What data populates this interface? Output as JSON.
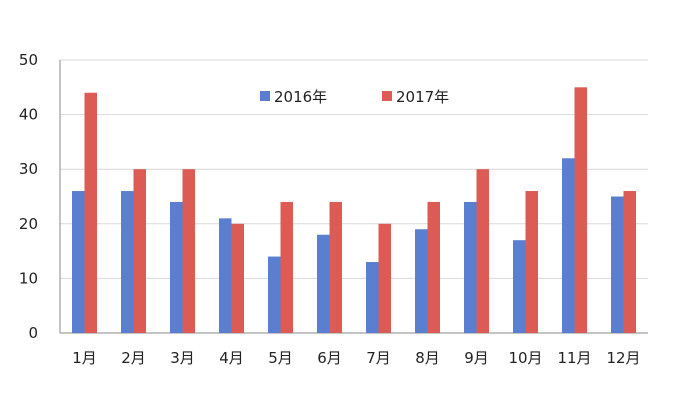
{
  "chart_data": {
    "type": "bar",
    "categories": [
      "1月",
      "2月",
      "3月",
      "4月",
      "5月",
      "6月",
      "7月",
      "8月",
      "9月",
      "10月",
      "11月",
      "12月"
    ],
    "series": [
      {
        "name": "2016年",
        "color": "#5b7fd0",
        "values": [
          26,
          26,
          24,
          21,
          14,
          18,
          13,
          19,
          24,
          17,
          32,
          25
        ]
      },
      {
        "name": "2017年",
        "color": "#dc5b55",
        "values": [
          44,
          30,
          30,
          20,
          24,
          24,
          20,
          24,
          30,
          26,
          45,
          26
        ]
      }
    ],
    "ylim": [
      0,
      50
    ],
    "yticks": [
      0,
      10,
      20,
      30,
      40,
      50
    ],
    "grid": true,
    "legend_position": "top-center",
    "title": "",
    "xlabel": "",
    "ylabel": ""
  }
}
